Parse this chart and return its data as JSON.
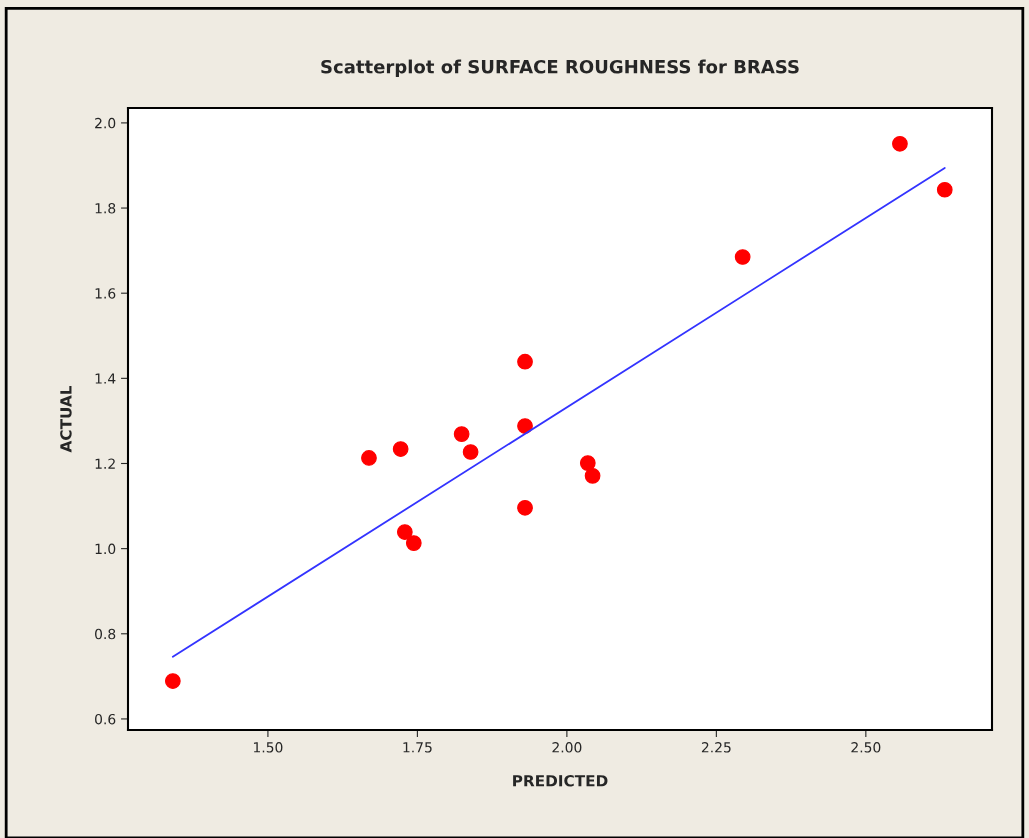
{
  "chart_data": {
    "type": "scatter",
    "title": "Scatterplot of SURFACE ROUGHNESS for BRASS",
    "xlabel": "PREDICTED",
    "ylabel": "ACTUAL",
    "xlim": [
      1.266,
      2.711
    ],
    "ylim": [
      0.574,
      2.035
    ],
    "xticks": [
      {
        "value": 1.5,
        "label": "1.50"
      },
      {
        "value": 1.75,
        "label": "1.75"
      },
      {
        "value": 2.0,
        "label": "2.00"
      },
      {
        "value": 2.25,
        "label": "2.25"
      },
      {
        "value": 2.5,
        "label": "2.50"
      }
    ],
    "yticks": [
      {
        "value": 0.6,
        "label": "0.6"
      },
      {
        "value": 0.8,
        "label": "0.8"
      },
      {
        "value": 1.0,
        "label": "1.0"
      },
      {
        "value": 1.2,
        "label": "1.2"
      },
      {
        "value": 1.4,
        "label": "1.4"
      },
      {
        "value": 1.6,
        "label": "1.6"
      },
      {
        "value": 1.8,
        "label": "1.8"
      },
      {
        "value": 2.0,
        "label": "2.0"
      }
    ],
    "grid": false,
    "legend": false,
    "series": [
      {
        "marker": "circle",
        "color": "#ff0000",
        "x": [
          1.341,
          1.669,
          1.722,
          1.729,
          1.744,
          1.824,
          1.839,
          1.93,
          1.93,
          1.93,
          2.035,
          2.043,
          2.294,
          2.557,
          2.632
        ],
        "values": [
          0.689,
          1.213,
          1.234,
          1.039,
          1.013,
          1.269,
          1.227,
          1.439,
          1.288,
          1.096,
          1.201,
          1.171,
          1.685,
          1.951,
          1.843
        ]
      },
      {
        "type": "line",
        "color": "#3333ff",
        "x": [
          1.341,
          2.632
        ],
        "values": [
          0.746,
          1.894
        ]
      }
    ]
  }
}
